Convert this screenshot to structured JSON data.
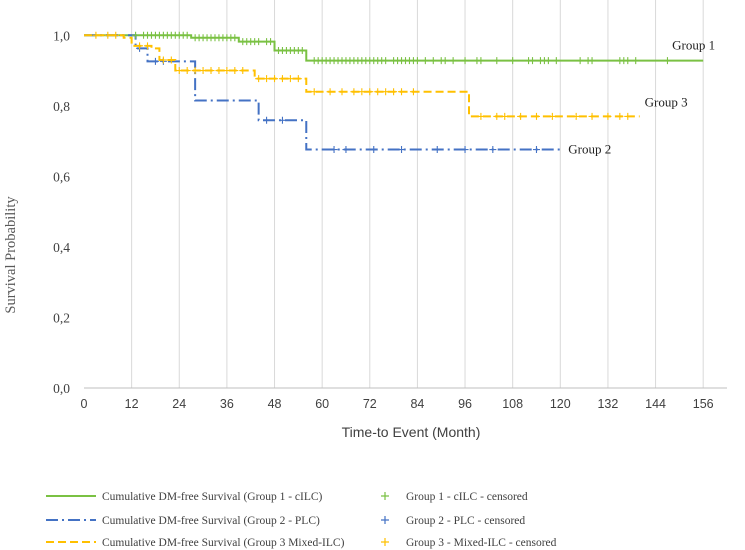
{
  "chart_data": {
    "type": "line",
    "xlabel": "Time-to Event (Month)",
    "ylabel": "Survival Probability",
    "xlim": [
      0,
      162
    ],
    "ylim": [
      0,
      1.1
    ],
    "xticks": [
      "0",
      "12",
      "24",
      "36",
      "48",
      "60",
      "72",
      "84",
      "96",
      "108",
      "120",
      "132",
      "144",
      "156"
    ],
    "yticks": [
      "0,0",
      "0,2",
      "0,4",
      "0,6",
      "0,8",
      "1,0"
    ],
    "grid": "vertical",
    "series": [
      {
        "name": "Cumulative DM-free Survival (Group 1 - cILC)",
        "end_label": "Group 1",
        "color": "#7ac143",
        "style": "solid",
        "steps": [
          [
            0,
            1.0
          ],
          [
            27,
            0.993
          ],
          [
            39,
            0.982
          ],
          [
            48,
            0.957
          ],
          [
            56,
            0.928
          ],
          [
            156,
            0.928
          ]
        ],
        "censored_name": "Group 1 - cILC - censored",
        "censored": [
          13,
          15,
          16,
          17,
          18,
          19,
          20,
          21,
          22,
          23,
          24,
          25,
          26,
          28,
          29,
          30,
          31,
          32,
          33,
          34,
          35,
          36,
          37,
          38,
          40,
          41,
          42,
          43,
          44,
          46,
          47,
          49,
          50,
          51,
          52,
          53,
          54,
          55,
          58,
          59,
          60,
          61,
          62,
          63,
          64,
          65,
          66,
          67,
          68,
          69,
          70,
          71,
          72,
          73,
          74,
          75,
          76,
          78,
          79,
          80,
          81,
          82,
          83,
          84,
          86,
          88,
          90,
          91,
          93,
          96,
          99,
          100,
          104,
          108,
          112,
          113,
          115,
          116,
          117,
          119,
          125,
          127,
          128,
          135,
          136,
          137,
          139,
          147
        ]
      },
      {
        "name": "Cumulative DM-free Survival (Group 2 - PLC)",
        "end_label": "Group 2",
        "color": "#4472c4",
        "style": "dashdot",
        "steps": [
          [
            0,
            1.0
          ],
          [
            13,
            0.963
          ],
          [
            16,
            0.926
          ],
          [
            28,
            0.815
          ],
          [
            44,
            0.759
          ],
          [
            56,
            0.676
          ],
          [
            120,
            0.676
          ]
        ],
        "censored_name": "Group 2 - PLC - censored",
        "censored": [
          14,
          18,
          20,
          46,
          50,
          63,
          66,
          73,
          80,
          89,
          96,
          103,
          114
        ]
      },
      {
        "name": "Cumulative DM-free Survival (Group 3 Mixed-ILC)",
        "end_label": "Group 3",
        "color": "#ffc000",
        "style": "dashed",
        "steps": [
          [
            0,
            1.0
          ],
          [
            10,
            0.993
          ],
          [
            12,
            0.97
          ],
          [
            17,
            0.963
          ],
          [
            19,
            0.93
          ],
          [
            23,
            0.9
          ],
          [
            43,
            0.877
          ],
          [
            56,
            0.84
          ],
          [
            97,
            0.77
          ],
          [
            140,
            0.77
          ]
        ],
        "censored_name": "Group 3 - Mixed-ILC - censored",
        "censored": [
          3,
          6,
          8,
          14,
          16,
          20,
          22,
          24,
          26,
          28,
          30,
          32,
          34,
          36,
          38,
          40,
          44,
          46,
          48,
          50,
          52,
          54,
          58,
          62,
          65,
          68,
          70,
          72,
          74,
          76,
          78,
          80,
          83,
          100,
          104,
          106,
          110,
          114,
          118,
          124,
          128,
          132,
          135,
          137
        ]
      }
    ]
  }
}
